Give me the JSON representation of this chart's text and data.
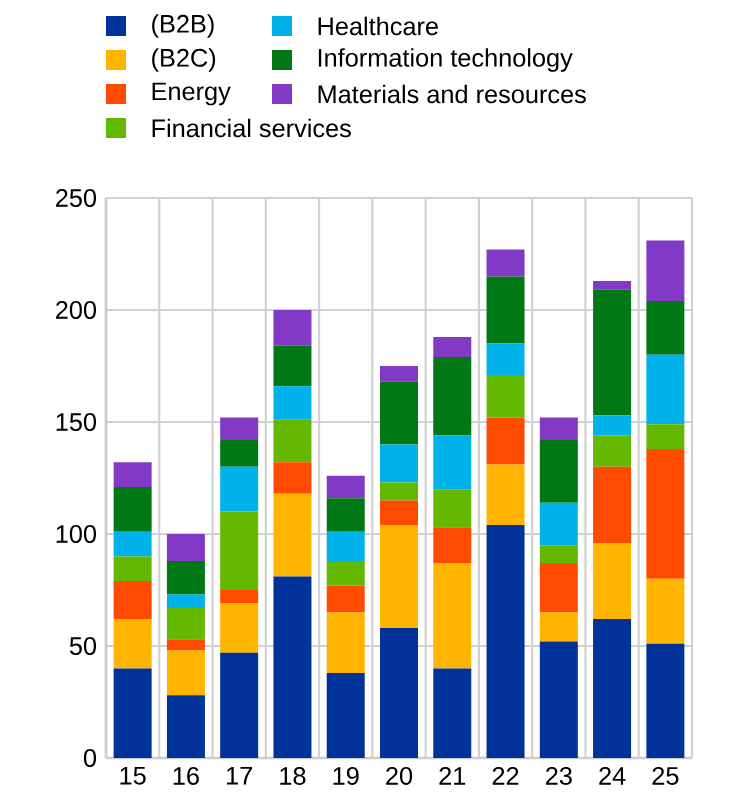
{
  "chart_data": {
    "type": "bar",
    "stacked": true,
    "categories": [
      "15",
      "16",
      "17",
      "18",
      "19",
      "20",
      "21",
      "22",
      "23",
      "24",
      "25"
    ],
    "ylim": [
      0,
      250
    ],
    "yticks": [
      0,
      50,
      100,
      150,
      200,
      250
    ],
    "grid": true,
    "legend": "top",
    "series": [
      {
        "name": "(B2B)",
        "color": "#003299",
        "values": [
          40,
          28,
          47,
          81,
          38,
          58,
          40,
          104,
          52,
          62,
          51
        ]
      },
      {
        "name": "(B2C)",
        "color": "#ffb400",
        "values": [
          22,
          20,
          22,
          37,
          27,
          46,
          47,
          27,
          13,
          34,
          29
        ]
      },
      {
        "name": "Energy",
        "color": "#ff4b00",
        "values": [
          17,
          5,
          6,
          14,
          12,
          11,
          16,
          21,
          22,
          34,
          58
        ]
      },
      {
        "name": "Financial services",
        "color": "#65b800",
        "values": [
          11,
          14,
          35,
          19,
          11,
          8,
          17,
          19,
          8,
          14,
          11
        ]
      },
      {
        "name": "Healthcare",
        "color": "#00b1ea",
        "values": [
          11,
          6,
          20,
          15,
          13,
          17,
          24,
          14,
          19,
          9,
          31
        ]
      },
      {
        "name": "Information technology",
        "color": "#007816",
        "values": [
          20,
          15,
          12,
          18,
          15,
          28,
          35,
          30,
          28,
          56,
          24
        ]
      },
      {
        "name": "Materials and resources",
        "color": "#8139c6",
        "values": [
          11,
          12,
          10,
          16,
          10,
          7,
          9,
          12,
          10,
          4,
          27
        ]
      }
    ]
  }
}
